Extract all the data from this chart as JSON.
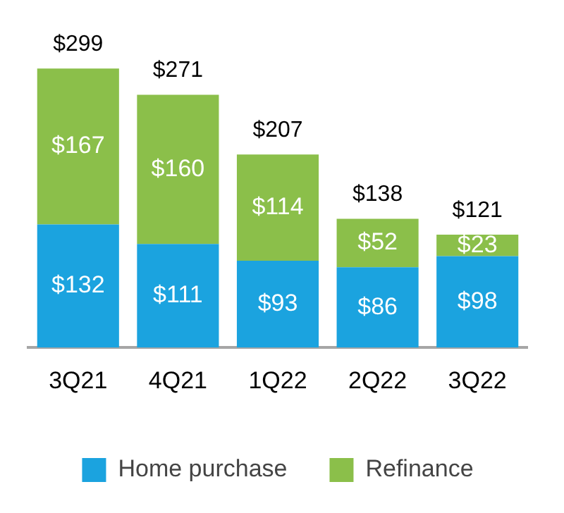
{
  "chart_data": {
    "type": "bar",
    "stacked": true,
    "categories": [
      "3Q21",
      "4Q21",
      "1Q22",
      "2Q22",
      "3Q22"
    ],
    "series": [
      {
        "name": "Home purchase",
        "color": "#1ba3df",
        "values": [
          132,
          111,
          93,
          86,
          98
        ],
        "value_labels": [
          "$132",
          "$111",
          "$93",
          "$86",
          "$98"
        ]
      },
      {
        "name": "Refinance",
        "color": "#8bbf4a",
        "values": [
          167,
          160,
          114,
          52,
          23
        ],
        "value_labels": [
          "$167",
          "$160",
          "$114",
          "$52",
          "$23"
        ]
      }
    ],
    "totals": [
      "$299",
      "$271",
      "$207",
      "$138",
      "$121"
    ],
    "legend": "bottom",
    "grid": false,
    "tick_labels": "x"
  }
}
